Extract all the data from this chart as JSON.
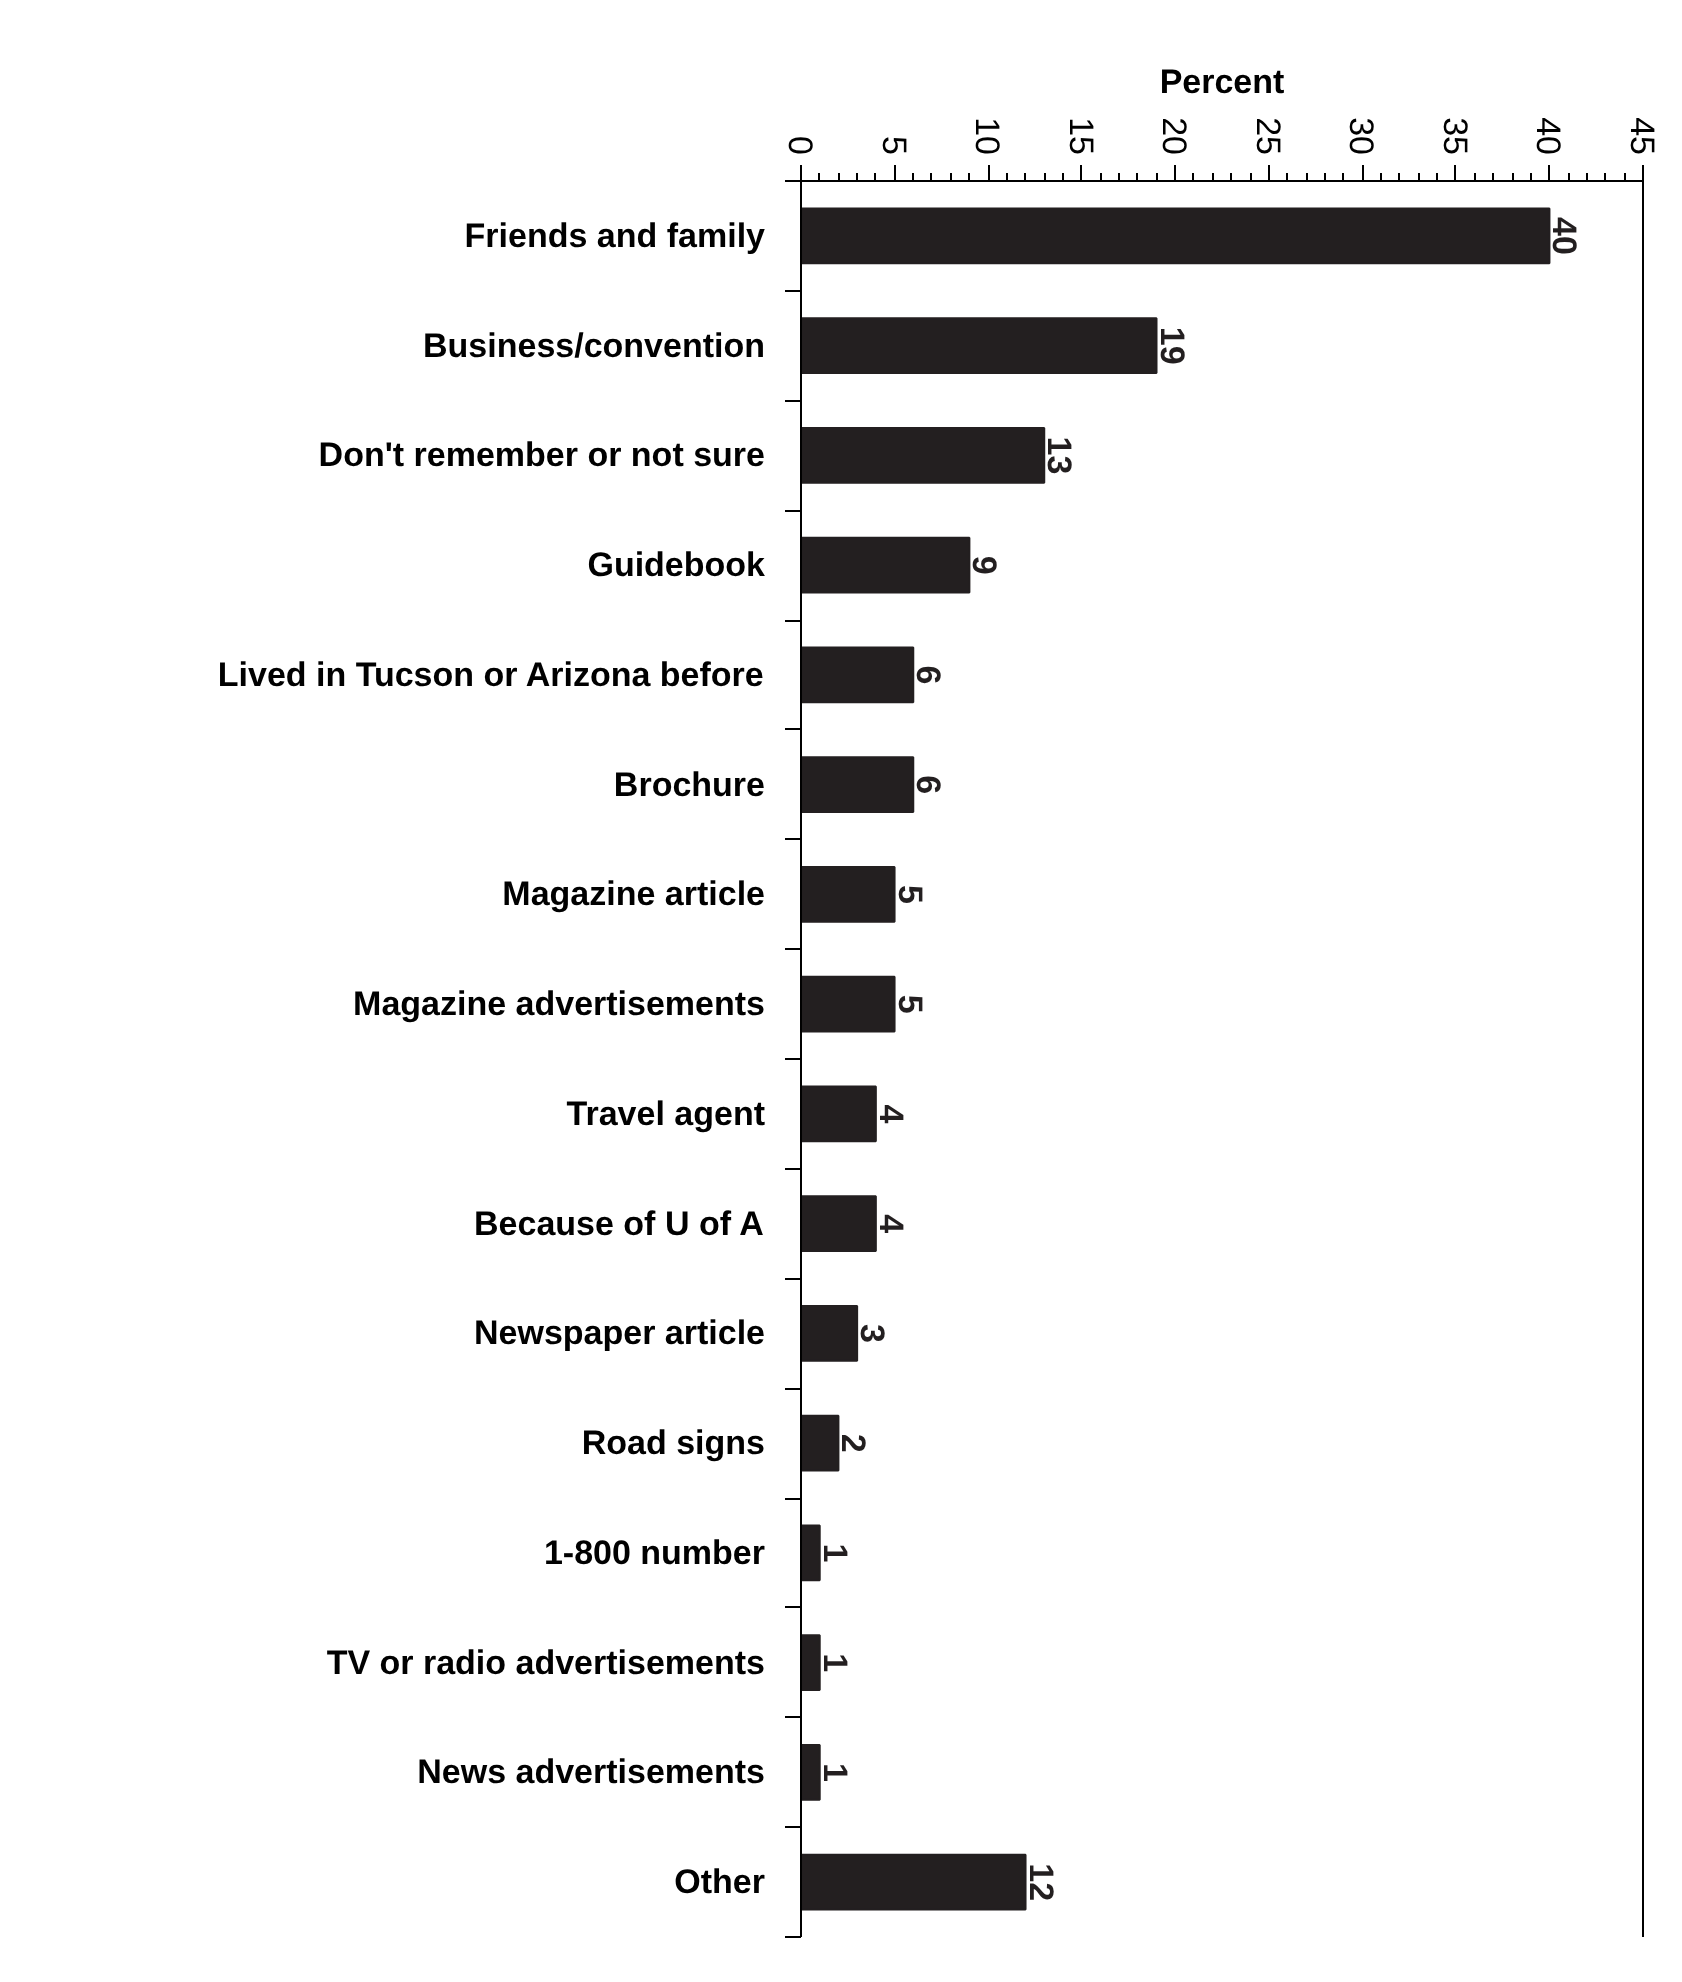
{
  "chart_data": {
    "type": "bar",
    "orientation": "horizontal",
    "xlabel": "Percent",
    "categories": [
      "Friends and family",
      "Business/convention",
      "Don't remember or not sure",
      "Guidebook",
      "Lived in Tucson or Arizona before",
      "Brochure",
      "Magazine article",
      "Magazine advertisements",
      "Travel agent",
      "Because of U of A",
      "Newspaper article",
      "Road signs",
      "1-800 number",
      "TV or radio advertisements",
      "News advertisements",
      "Other"
    ],
    "values": [
      40,
      19,
      13,
      9,
      6,
      6,
      5,
      5,
      4,
      4,
      3,
      2,
      1,
      1,
      1,
      12
    ],
    "color": "#231f20",
    "xlim": [
      0,
      45
    ],
    "xticks": [
      0,
      5,
      10,
      15,
      20,
      25,
      30,
      35,
      40,
      45
    ],
    "data_labels": true,
    "grid": false
  }
}
